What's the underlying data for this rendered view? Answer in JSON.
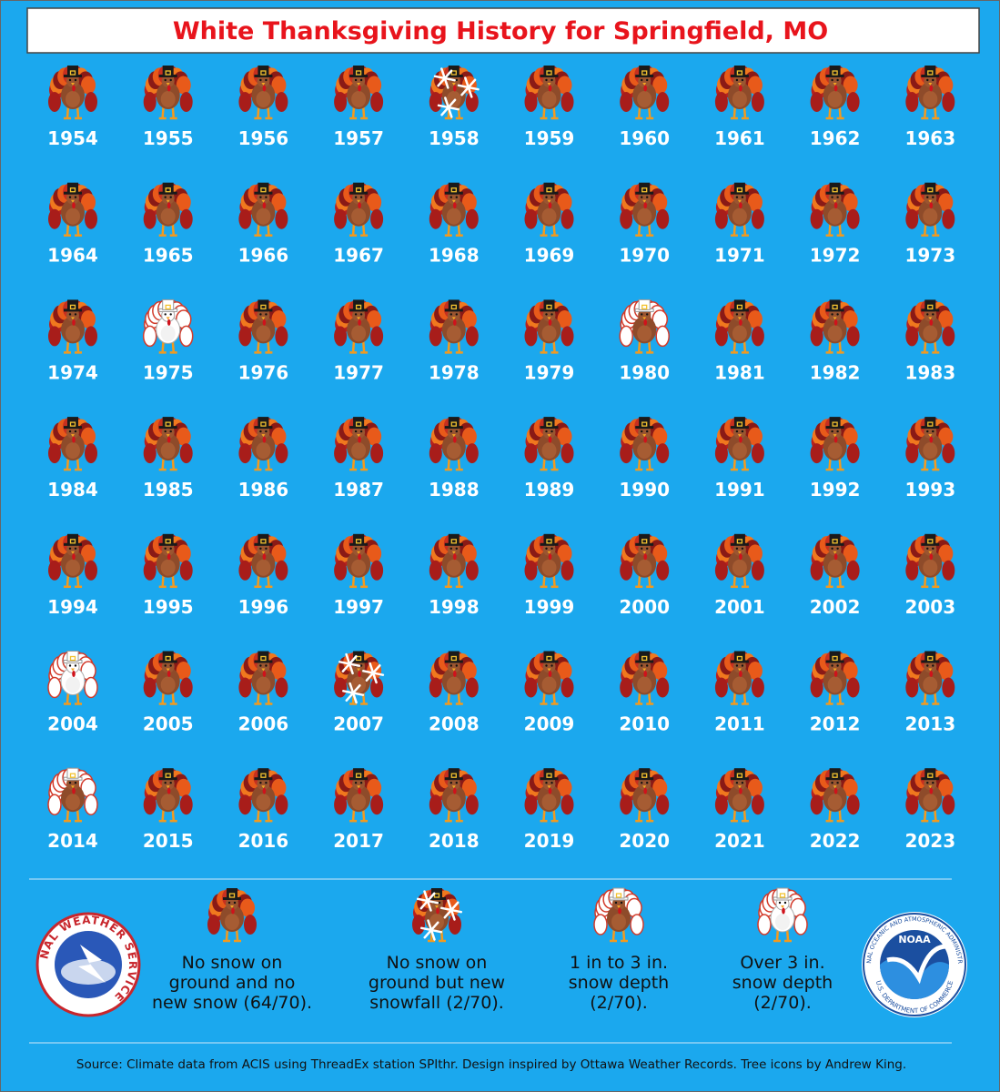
{
  "title": "White Thanksgiving History for Springfield, MO",
  "years": [
    {
      "year": "1954",
      "style": "plain"
    },
    {
      "year": "1955",
      "style": "plain"
    },
    {
      "year": "1956",
      "style": "plain"
    },
    {
      "year": "1957",
      "style": "plain"
    },
    {
      "year": "1958",
      "style": "flakes"
    },
    {
      "year": "1959",
      "style": "plain"
    },
    {
      "year": "1960",
      "style": "plain"
    },
    {
      "year": "1961",
      "style": "plain"
    },
    {
      "year": "1962",
      "style": "plain"
    },
    {
      "year": "1963",
      "style": "plain"
    },
    {
      "year": "1964",
      "style": "plain"
    },
    {
      "year": "1965",
      "style": "plain"
    },
    {
      "year": "1966",
      "style": "plain"
    },
    {
      "year": "1967",
      "style": "plain"
    },
    {
      "year": "1968",
      "style": "plain"
    },
    {
      "year": "1969",
      "style": "plain"
    },
    {
      "year": "1970",
      "style": "plain"
    },
    {
      "year": "1971",
      "style": "plain"
    },
    {
      "year": "1972",
      "style": "plain"
    },
    {
      "year": "1973",
      "style": "plain"
    },
    {
      "year": "1974",
      "style": "plain"
    },
    {
      "year": "1975",
      "style": "white"
    },
    {
      "year": "1976",
      "style": "plain"
    },
    {
      "year": "1977",
      "style": "plain"
    },
    {
      "year": "1978",
      "style": "plain"
    },
    {
      "year": "1979",
      "style": "plain"
    },
    {
      "year": "1980",
      "style": "ring"
    },
    {
      "year": "1981",
      "style": "plain"
    },
    {
      "year": "1982",
      "style": "plain"
    },
    {
      "year": "1983",
      "style": "plain"
    },
    {
      "year": "1984",
      "style": "plain"
    },
    {
      "year": "1985",
      "style": "plain"
    },
    {
      "year": "1986",
      "style": "plain"
    },
    {
      "year": "1987",
      "style": "plain"
    },
    {
      "year": "1988",
      "style": "plain"
    },
    {
      "year": "1989",
      "style": "plain"
    },
    {
      "year": "1990",
      "style": "plain"
    },
    {
      "year": "1991",
      "style": "plain"
    },
    {
      "year": "1992",
      "style": "plain"
    },
    {
      "year": "1993",
      "style": "plain"
    },
    {
      "year": "1994",
      "style": "plain"
    },
    {
      "year": "1995",
      "style": "plain"
    },
    {
      "year": "1996",
      "style": "plain"
    },
    {
      "year": "1997",
      "style": "plain"
    },
    {
      "year": "1998",
      "style": "plain"
    },
    {
      "year": "1999",
      "style": "plain"
    },
    {
      "year": "2000",
      "style": "plain"
    },
    {
      "year": "2001",
      "style": "plain"
    },
    {
      "year": "2002",
      "style": "plain"
    },
    {
      "year": "2003",
      "style": "plain"
    },
    {
      "year": "2004",
      "style": "white"
    },
    {
      "year": "2005",
      "style": "plain"
    },
    {
      "year": "2006",
      "style": "plain"
    },
    {
      "year": "2007",
      "style": "flakes"
    },
    {
      "year": "2008",
      "style": "plain"
    },
    {
      "year": "2009",
      "style": "plain"
    },
    {
      "year": "2010",
      "style": "plain"
    },
    {
      "year": "2011",
      "style": "plain"
    },
    {
      "year": "2012",
      "style": "plain"
    },
    {
      "year": "2013",
      "style": "plain"
    },
    {
      "year": "2014",
      "style": "ring"
    },
    {
      "year": "2015",
      "style": "plain"
    },
    {
      "year": "2016",
      "style": "plain"
    },
    {
      "year": "2017",
      "style": "plain"
    },
    {
      "year": "2018",
      "style": "plain"
    },
    {
      "year": "2019",
      "style": "plain"
    },
    {
      "year": "2020",
      "style": "plain"
    },
    {
      "year": "2021",
      "style": "plain"
    },
    {
      "year": "2022",
      "style": "plain"
    },
    {
      "year": "2023",
      "style": "plain"
    }
  ],
  "legend": [
    {
      "style": "plain",
      "lines": [
        "No snow on",
        "ground and no",
        "new snow (64/70)."
      ]
    },
    {
      "style": "flakes",
      "lines": [
        "No snow on",
        "ground but new",
        "snowfall (2/70)."
      ]
    },
    {
      "style": "ring",
      "lines": [
        "1 in to 3 in.",
        "snow depth",
        "(2/70)."
      ]
    },
    {
      "style": "white",
      "lines": [
        "Over 3 in.",
        "snow depth",
        "(2/70)."
      ]
    }
  ],
  "logos": {
    "nws": "NATIONAL WEATHER SERVICE",
    "noaa": "NOAA",
    "noaa_ring": "NATIONAL OCEANIC AND ATMOSPHERIC ADMINISTRATION",
    "noaa_dept": "U.S. DEPARTMENT OF COMMERCE"
  },
  "source": "Source: Climate data from ACIS using ThreadEx station SPIthr. Design inspired by Ottawa Weather Records. Tree icons by Andrew King."
}
